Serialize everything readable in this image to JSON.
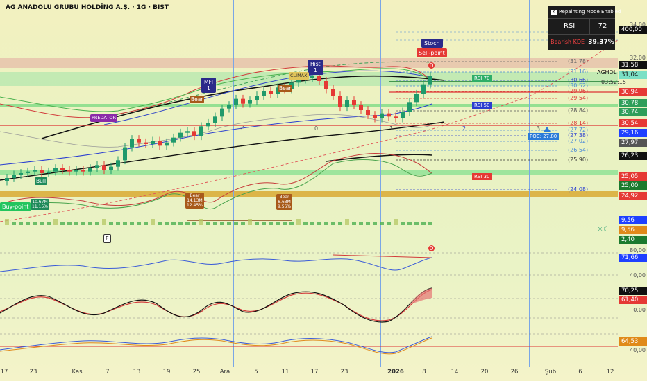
{
  "header": {
    "title": "AG ANADOLU GRUBU HOLDİNG A.Ş. · 1G · BIST"
  },
  "info_panel": {
    "mode": "Repainting Mode Enabled",
    "rsi_label": "RSI",
    "rsi_value": "72",
    "kde_label": "Bearish KDE",
    "kde_value": "39.37%"
  },
  "ticker_badge": "AGHOL",
  "countdown": "03:52:15",
  "price_axis": [
    {
      "v": "400,00",
      "bg": "#111111",
      "fg": "#ffffff"
    },
    {
      "v": "31,58",
      "bg": "#111111",
      "fg": "#ffffff"
    },
    {
      "v": "31,04",
      "bg": "#7be0c5",
      "fg": "#111111"
    },
    {
      "v": "30,94",
      "bg": "#e53935",
      "fg": "#ffffff"
    },
    {
      "v": "30,78",
      "bg": "#2e9e5a",
      "fg": "#ffffff"
    },
    {
      "v": "30,74",
      "bg": "#2e9e5a",
      "fg": "#ffffff"
    },
    {
      "v": "30,54",
      "bg": "#e53935",
      "fg": "#ffffff"
    },
    {
      "v": "29,16",
      "bg": "#1e40ff",
      "fg": "#ffffff"
    },
    {
      "v": "27,97",
      "bg": "#555555",
      "fg": "#ffffff"
    },
    {
      "v": "26,23",
      "bg": "#111111",
      "fg": "#ffffff"
    },
    {
      "v": "25,05",
      "bg": "#e53935",
      "fg": "#ffffff"
    },
    {
      "v": "25,00",
      "bg": "#1b7a2e",
      "fg": "#ffffff"
    },
    {
      "v": "24,92",
      "bg": "#e53935",
      "fg": "#ffffff"
    },
    {
      "v": "9,56",
      "bg": "#1e40ff",
      "fg": "#ffffff"
    },
    {
      "v": "9,56",
      "bg": "#e08a1a",
      "fg": "#ffffff"
    },
    {
      "v": "2,40",
      "bg": "#1b7a2e",
      "fg": "#ffffff"
    },
    {
      "v": "71,66",
      "bg": "#1e40ff",
      "fg": "#ffffff"
    },
    {
      "v": "70,25",
      "bg": "#111111",
      "fg": "#ffffff"
    },
    {
      "v": "61,40",
      "bg": "#e53935",
      "fg": "#ffffff"
    },
    {
      "v": "64,53",
      "bg": "#e08a1a",
      "fg": "#ffffff"
    }
  ],
  "axis_ticks": [
    "34,00",
    "32,00",
    "80,00",
    "40,00",
    "0,00",
    "40,00"
  ],
  "levels": [
    "(31.78)",
    "(31.16)",
    "(30.66)",
    "(30.52)",
    "(29.96)",
    "(29.54)",
    "(28.84)",
    "(28.14)",
    "(27.72)",
    "(27.38)",
    "(27.02)",
    "(26.54)",
    "(25.90)",
    "(24.08)"
  ],
  "rsi_tags": {
    "rsi70": "RSI 70",
    "rsi50": "RSI 50",
    "rsi30": "RSI 30",
    "poc": "POC: 27.80"
  },
  "signals": {
    "stoch": "Stoch",
    "sell_point": "Sell-point",
    "hist": "Hist\n1",
    "mfi": "MFI\n1",
    "climax": "CLIMAX",
    "bear1": "Bear",
    "bear2": "Bear",
    "predator": "PREDATOR",
    "bull": "Bull",
    "buy_point": "Buy-point",
    "buy_vol": "10.67M\n11.15%",
    "bear_vol1": "Bear\n14.13M\n12.45%",
    "bear_vol2": "Bear\n8.63M\n9.56%",
    "d_marker": "D",
    "e_marker": "E",
    "fib0": "0",
    "fib1": "1",
    "fib_neg1": "-1",
    "fib2": "2",
    "fib3": "3"
  },
  "x_axis": [
    "17",
    "23",
    "Kas",
    "7",
    "13",
    "19",
    "25",
    "Ara",
    "5",
    "11",
    "17",
    "23",
    "2026",
    "8",
    "14",
    "20",
    "26",
    "Şub",
    "6",
    "12"
  ],
  "colors": {
    "bull": "#1f9a6b",
    "bear": "#e53935",
    "black": "#111111",
    "blue": "#2b3fd0",
    "green": "#4caf50",
    "orange": "#e08a1a"
  },
  "chart_data": {
    "type": "candlestick",
    "title": "AG ANADOLU GRUBU HOLDİNG A.Ş. · 1G · BIST",
    "close": [
      24.7,
      24.9,
      25.0,
      25.1,
      25.2,
      25.0,
      25.1,
      25.3,
      25.2,
      25.1,
      25.2,
      25.1,
      25.3,
      25.5,
      25.2,
      25.4,
      25.8,
      26.6,
      27.1,
      26.9,
      26.8,
      27.0,
      26.7,
      26.9,
      27.2,
      27.5,
      27.6,
      27.3,
      27.9,
      28.1,
      28.5,
      29.0,
      29.2,
      29.6,
      29.3,
      29.5,
      29.8,
      30.1,
      29.9,
      30.3,
      30.2,
      30.6,
      30.8,
      30.9,
      31.0,
      30.7,
      30.2,
      29.8,
      29.1,
      29.5,
      29.2,
      28.9,
      28.6,
      28.4,
      28.7,
      28.5,
      28.4,
      28.8,
      29.4,
      29.9,
      30.5,
      31.0
    ],
    "ylim": [
      23.5,
      34.0
    ],
    "indicators": {
      "rsi": 71.66,
      "stoch_k": 70.25,
      "stoch_d": 61.4,
      "macd": 64.53
    }
  }
}
